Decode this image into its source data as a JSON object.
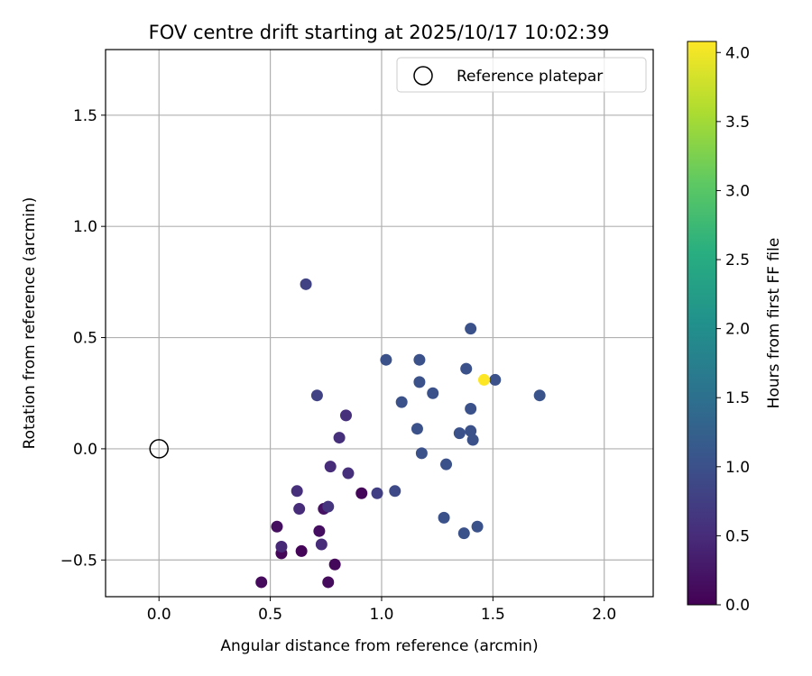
{
  "chart_data": {
    "type": "scatter",
    "title": "FOV centre drift starting at 2025/10/17 10:02:39",
    "xlabel": "Angular distance from reference (arcmin)",
    "ylabel": "Rotation from reference (arcmin)",
    "xlim": [
      -0.24,
      2.22
    ],
    "ylim": [
      -0.665,
      1.795
    ],
    "xticks": [
      0.0,
      0.5,
      1.0,
      1.5,
      2.0
    ],
    "xtick_labels": [
      "0.0",
      "0.5",
      "1.0",
      "1.5",
      "2.0"
    ],
    "yticks": [
      -0.5,
      0.0,
      0.5,
      1.0,
      1.5
    ],
    "ytick_labels": [
      "−0.5",
      "0.0",
      "0.5",
      "1.0",
      "1.5"
    ],
    "grid": true,
    "legend": {
      "position": "top-right",
      "entries": [
        "Reference platepar"
      ]
    },
    "reference": {
      "x": 0.0,
      "y": 0.0,
      "label": "Reference platepar"
    },
    "colorbar": {
      "label": "Hours from first FF file",
      "colormap": "viridis",
      "range": [
        0.0,
        4.08
      ],
      "ticks": [
        0.0,
        0.5,
        1.0,
        1.5,
        2.0,
        2.5,
        3.0,
        3.5,
        4.0
      ],
      "tick_labels": [
        "0.0",
        "0.5",
        "1.0",
        "1.5",
        "2.0",
        "2.5",
        "3.0",
        "3.5",
        "4.0"
      ]
    },
    "points": [
      {
        "x": 0.46,
        "y": -0.6,
        "hours": 0.1
      },
      {
        "x": 0.76,
        "y": -0.6,
        "hours": 0.12
      },
      {
        "x": 0.79,
        "y": -0.52,
        "hours": 0.08
      },
      {
        "x": 0.55,
        "y": -0.47,
        "hours": 0.06
      },
      {
        "x": 0.64,
        "y": -0.46,
        "hours": 0.04
      },
      {
        "x": 0.55,
        "y": -0.44,
        "hours": 0.45
      },
      {
        "x": 0.73,
        "y": -0.43,
        "hours": 0.5
      },
      {
        "x": 0.72,
        "y": -0.37,
        "hours": 0.14
      },
      {
        "x": 0.53,
        "y": -0.35,
        "hours": 0.16
      },
      {
        "x": 0.74,
        "y": -0.27,
        "hours": 0.18
      },
      {
        "x": 0.63,
        "y": -0.27,
        "hours": 0.5
      },
      {
        "x": 0.76,
        "y": -0.26,
        "hours": 0.6
      },
      {
        "x": 0.62,
        "y": -0.19,
        "hours": 0.55
      },
      {
        "x": 0.91,
        "y": -0.2,
        "hours": 0.06
      },
      {
        "x": 0.98,
        "y": -0.2,
        "hours": 0.75
      },
      {
        "x": 1.06,
        "y": -0.19,
        "hours": 0.9
      },
      {
        "x": 0.77,
        "y": -0.08,
        "hours": 0.5
      },
      {
        "x": 0.85,
        "y": -0.11,
        "hours": 0.55
      },
      {
        "x": 0.81,
        "y": 0.05,
        "hours": 0.55
      },
      {
        "x": 0.84,
        "y": 0.15,
        "hours": 0.55
      },
      {
        "x": 0.71,
        "y": 0.24,
        "hours": 0.8
      },
      {
        "x": 0.66,
        "y": 0.74,
        "hours": 0.8
      },
      {
        "x": 1.02,
        "y": 0.4,
        "hours": 1.0
      },
      {
        "x": 1.09,
        "y": 0.21,
        "hours": 1.0
      },
      {
        "x": 1.17,
        "y": 0.4,
        "hours": 1.0
      },
      {
        "x": 1.17,
        "y": 0.3,
        "hours": 1.0
      },
      {
        "x": 1.23,
        "y": 0.25,
        "hours": 1.0
      },
      {
        "x": 1.16,
        "y": 0.09,
        "hours": 1.0
      },
      {
        "x": 1.18,
        "y": -0.02,
        "hours": 1.0
      },
      {
        "x": 1.29,
        "y": -0.07,
        "hours": 1.0
      },
      {
        "x": 1.28,
        "y": -0.31,
        "hours": 1.0
      },
      {
        "x": 1.37,
        "y": -0.38,
        "hours": 1.0
      },
      {
        "x": 1.43,
        "y": -0.35,
        "hours": 1.0
      },
      {
        "x": 1.35,
        "y": 0.07,
        "hours": 1.0
      },
      {
        "x": 1.4,
        "y": 0.08,
        "hours": 1.0
      },
      {
        "x": 1.41,
        "y": 0.04,
        "hours": 1.0
      },
      {
        "x": 1.4,
        "y": 0.18,
        "hours": 1.0
      },
      {
        "x": 1.38,
        "y": 0.36,
        "hours": 1.0
      },
      {
        "x": 1.4,
        "y": 0.54,
        "hours": 1.0
      },
      {
        "x": 1.51,
        "y": 0.31,
        "hours": 1.0
      },
      {
        "x": 1.71,
        "y": 0.24,
        "hours": 1.05
      },
      {
        "x": 1.46,
        "y": 0.31,
        "hours": 4.08
      }
    ]
  }
}
